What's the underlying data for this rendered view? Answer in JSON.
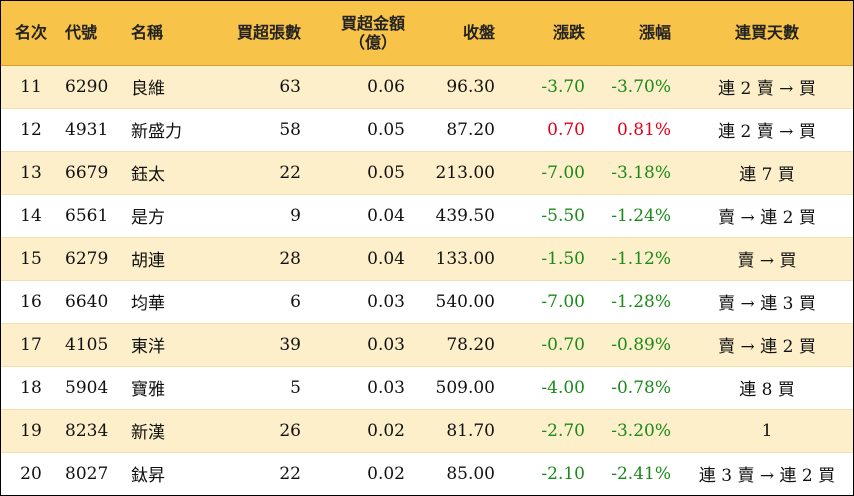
{
  "headers": {
    "rank": "名次",
    "code": "代號",
    "name": "名稱",
    "net_lots": "買超張數",
    "net_amount_line1": "買超金額",
    "net_amount_line2": "（億）",
    "close": "收盤",
    "change": "漲跌",
    "change_pct": "漲幅",
    "streak": "連買天數"
  },
  "rows": [
    {
      "rank": "11",
      "code": "6290",
      "name": "良維",
      "net_lots": "63",
      "net_amount": "0.06",
      "close": "96.30",
      "change": "-3.70",
      "change_pct": "-3.70%",
      "streak": "連 2 賣 → 買",
      "trend": "down"
    },
    {
      "rank": "12",
      "code": "4931",
      "name": "新盛力",
      "net_lots": "58",
      "net_amount": "0.05",
      "close": "87.20",
      "change": "0.70",
      "change_pct": "0.81%",
      "streak": "連 2 賣 → 買",
      "trend": "up"
    },
    {
      "rank": "13",
      "code": "6679",
      "name": "鈺太",
      "net_lots": "22",
      "net_amount": "0.05",
      "close": "213.00",
      "change": "-7.00",
      "change_pct": "-3.18%",
      "streak": "連 7 買",
      "trend": "down"
    },
    {
      "rank": "14",
      "code": "6561",
      "name": "是方",
      "net_lots": "9",
      "net_amount": "0.04",
      "close": "439.50",
      "change": "-5.50",
      "change_pct": "-1.24%",
      "streak": "賣 → 連 2 買",
      "trend": "down"
    },
    {
      "rank": "15",
      "code": "6279",
      "name": "胡連",
      "net_lots": "28",
      "net_amount": "0.04",
      "close": "133.00",
      "change": "-1.50",
      "change_pct": "-1.12%",
      "streak": "賣 → 買",
      "trend": "down"
    },
    {
      "rank": "16",
      "code": "6640",
      "name": "均華",
      "net_lots": "6",
      "net_amount": "0.03",
      "close": "540.00",
      "change": "-7.00",
      "change_pct": "-1.28%",
      "streak": "賣 → 連 3 買",
      "trend": "down"
    },
    {
      "rank": "17",
      "code": "4105",
      "name": "東洋",
      "net_lots": "39",
      "net_amount": "0.03",
      "close": "78.20",
      "change": "-0.70",
      "change_pct": "-0.89%",
      "streak": "賣 → 連 2 買",
      "trend": "down"
    },
    {
      "rank": "18",
      "code": "5904",
      "name": "寶雅",
      "net_lots": "5",
      "net_amount": "0.03",
      "close": "509.00",
      "change": "-4.00",
      "change_pct": "-0.78%",
      "streak": "連 8 買",
      "trend": "down"
    },
    {
      "rank": "19",
      "code": "8234",
      "name": "新漢",
      "net_lots": "26",
      "net_amount": "0.02",
      "close": "81.70",
      "change": "-2.70",
      "change_pct": "-3.20%",
      "streak": "1",
      "trend": "down"
    },
    {
      "rank": "20",
      "code": "8027",
      "name": "鈦昇",
      "net_lots": "22",
      "net_amount": "0.02",
      "close": "85.00",
      "change": "-2.10",
      "change_pct": "-2.41%",
      "streak": "連 3 賣 → 連 2 買",
      "trend": "down"
    }
  ],
  "colors": {
    "header_bg": "#f8c349",
    "odd_row_bg": "#fdefc9",
    "even_row_bg": "#ffffff",
    "down": "#1a8a1a",
    "up": "#e0001a"
  }
}
